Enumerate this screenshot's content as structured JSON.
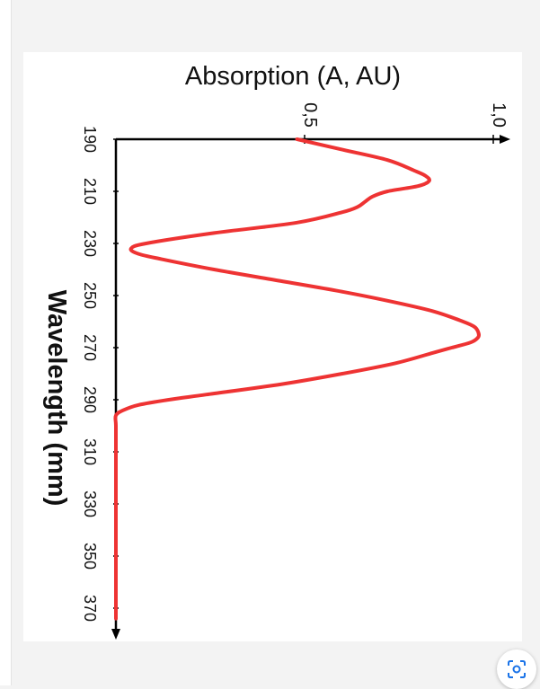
{
  "chart_data": {
    "type": "line",
    "orientation": "rotated-90-clockwise",
    "ylabel": "Absorption (A, AU)",
    "xlabel": "Wavelength  (mm)",
    "x_ticks": [
      190,
      210,
      230,
      250,
      270,
      290,
      310,
      330,
      350,
      370
    ],
    "x_tick_labels": [
      "190",
      "210",
      "230",
      "250",
      "270",
      "290",
      "310",
      "330",
      "350",
      "370"
    ],
    "y_ticks": [
      0.5,
      1.0
    ],
    "y_tick_labels": [
      "0,5",
      "1,0"
    ],
    "xlim": [
      190,
      374
    ],
    "ylim": [
      0,
      1.05
    ],
    "line_color": "#ee3333",
    "series": [
      {
        "x": [
          190,
          194,
          198,
          202,
          204,
          206,
          208,
          210,
          212,
          214,
          216,
          218,
          222,
          226,
          230,
          232,
          234,
          236,
          240,
          244,
          248,
          252,
          256,
          260,
          262,
          264,
          266,
          268,
          270,
          272,
          276,
          280,
          284,
          288,
          290,
          292,
          294,
          296,
          300,
          310,
          320,
          330,
          340,
          350,
          360,
          370,
          374
        ],
        "y": [
          0.48,
          0.6,
          0.72,
          0.79,
          0.82,
          0.83,
          0.8,
          0.72,
          0.68,
          0.66,
          0.64,
          0.6,
          0.48,
          0.26,
          0.08,
          0.04,
          0.06,
          0.12,
          0.26,
          0.42,
          0.58,
          0.72,
          0.84,
          0.92,
          0.95,
          0.96,
          0.96,
          0.94,
          0.89,
          0.84,
          0.74,
          0.6,
          0.44,
          0.24,
          0.14,
          0.06,
          0.02,
          0.0,
          0.0,
          0.0,
          0.0,
          0.0,
          0.0,
          0.0,
          0.0,
          0.0,
          0.0
        ]
      }
    ]
  },
  "ui": {
    "lens_icon": "google-lens-icon"
  }
}
